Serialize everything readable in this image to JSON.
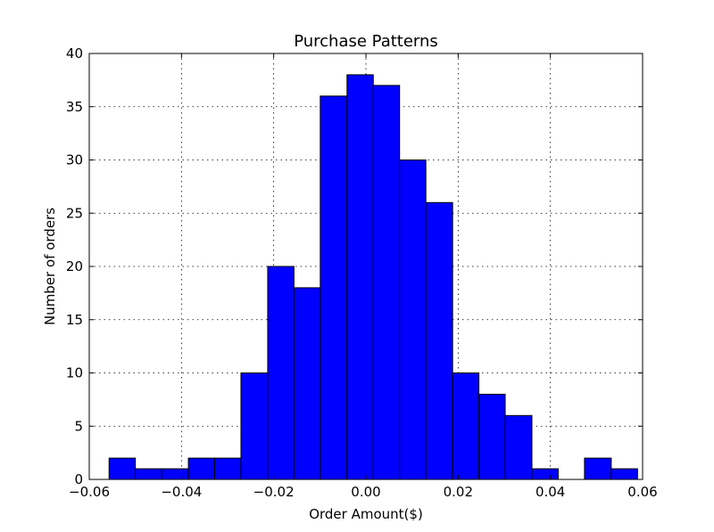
{
  "chart_data": {
    "type": "bar",
    "title": "Purchase Patterns",
    "xlabel": "Order Amount($)",
    "ylabel": "Number of orders",
    "xlim": [
      -0.06,
      0.06
    ],
    "ylim": [
      0,
      40
    ],
    "grid": true,
    "bar_color": "#0000ff",
    "bin_edges": [
      -0.0557,
      -0.05,
      -0.0443,
      -0.0385,
      -0.0328,
      -0.0271,
      -0.0213,
      -0.0156,
      -0.0099,
      -0.0041,
      0.0016,
      0.0073,
      0.013,
      0.0188,
      0.0245,
      0.0302,
      0.036,
      0.0417,
      0.0474,
      0.0532,
      0.0589
    ],
    "values": [
      2,
      1,
      1,
      2,
      2,
      10,
      20,
      18,
      36,
      38,
      37,
      30,
      26,
      10,
      8,
      6,
      1,
      0,
      2,
      1
    ],
    "x_ticks": [
      -0.06,
      -0.04,
      -0.02,
      0.0,
      0.02,
      0.04,
      0.06
    ],
    "x_tick_labels": [
      "−0.06",
      "−0.04",
      "−0.02",
      "0.00",
      "0.02",
      "0.04",
      "0.06"
    ],
    "y_ticks": [
      0,
      5,
      10,
      15,
      20,
      25,
      30,
      35,
      40
    ],
    "y_tick_labels": [
      "0",
      "5",
      "10",
      "15",
      "20",
      "25",
      "30",
      "35",
      "40"
    ]
  }
}
